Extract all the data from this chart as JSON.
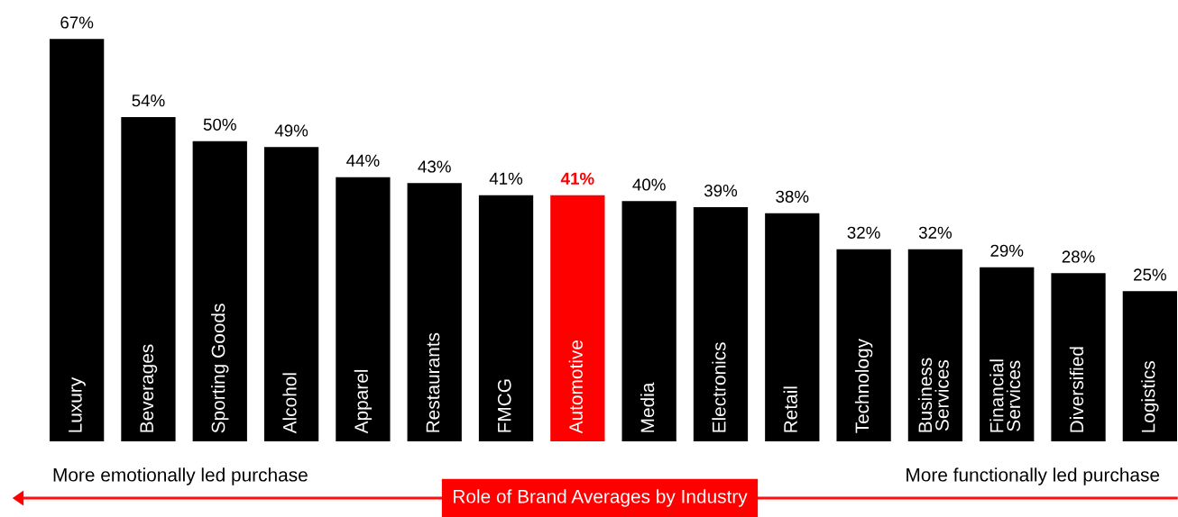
{
  "chart_data": {
    "type": "bar",
    "categories": [
      "Luxury",
      "Beverages",
      "Sporting Goods",
      "Alcohol",
      "Apparel",
      "Restaurants",
      "FMCG",
      "Automotive",
      "Media",
      "Electronics",
      "Retail",
      "Technology",
      "Business\nServices",
      "Financial\nServices",
      "Diversified",
      "Logistics"
    ],
    "values": [
      67,
      54,
      50,
      49,
      44,
      43,
      41,
      41,
      40,
      39,
      38,
      32,
      32,
      29,
      28,
      25
    ],
    "colors": [
      "#000000",
      "#000000",
      "#000000",
      "#000000",
      "#000000",
      "#000000",
      "#000000",
      "#ff0000",
      "#000000",
      "#000000",
      "#000000",
      "#000000",
      "#000000",
      "#000000",
      "#000000",
      "#000000"
    ],
    "value_labels": [
      "67%",
      "54%",
      "50%",
      "49%",
      "44%",
      "43%",
      "41%",
      "41%",
      "40%",
      "39%",
      "38%",
      "32%",
      "32%",
      "29%",
      "28%",
      "25%"
    ],
    "xlabel": "Role of Brand Averages by Industry",
    "annotations": [
      "More emotionally led purchase",
      "More functionally led purchase"
    ],
    "data_labels": true
  }
}
